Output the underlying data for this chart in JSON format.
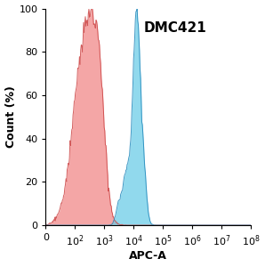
{
  "title": "DMC421",
  "xlabel": "APC-A",
  "ylabel": "Count (%)",
  "ylim": [
    0,
    100
  ],
  "yticks": [
    0,
    20,
    40,
    60,
    80,
    100
  ],
  "red_color": "#F08080",
  "red_edge_color": "#CC4444",
  "blue_color": "#6DCDE8",
  "blue_edge_color": "#2288BB",
  "background_color": "#FFFFFF",
  "title_fontsize": 11,
  "axis_label_fontsize": 9,
  "tick_fontsize": 8
}
